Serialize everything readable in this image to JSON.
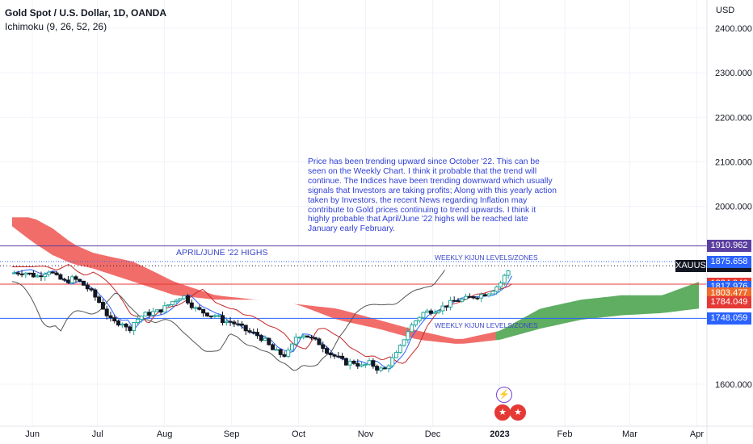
{
  "header": {
    "title": "Gold Spot / U.S. Dollar, 1D, OANDA",
    "indicator": "Ichimoku (9, 26, 52, 26)",
    "currency": "USD"
  },
  "annotations": {
    "april_june_label": "APRIL/JUNE '22 HIGHS",
    "weekly_kijun_label": "WEEKLY KIJUN LEVELS/ZONES",
    "weekly_kijun_label_2": "WEEKLY KIJUN LEVELS/ZONES",
    "note": "Price has been trending upward since October '22. This can be seen on the Weekly Chart. I think it probable that the trend will continue. The Indices have been trending downward which usually signals that Investors are taking profits; Along with this yearly action taken by Investors, the recent News regarding Inflation may contribute to Gold prices continuing to trend upwards. I think it highly probable that April/June '22 highs will be reached late January early February."
  },
  "price_tags": {
    "symbol": "XAUUSD",
    "last": "1866.110",
    "levels": [
      {
        "label": "1910.962",
        "value": 1910.962,
        "color": "#5b3fa0"
      },
      {
        "label": "1875.658",
        "value": 1875.658,
        "color": "#2962ff"
      },
      {
        "label": "1824.946",
        "value": 1824.946,
        "color": "#e53935"
      },
      {
        "label": "1817.976",
        "value": 1817.976,
        "color": "#2962ff"
      },
      {
        "label": "1803.477",
        "value": 1803.477,
        "color": "#ef6c2d"
      },
      {
        "label": "1784.049",
        "value": 1784.049,
        "color": "#e53935"
      },
      {
        "label": "1748.059",
        "value": 1748.059,
        "color": "#2962ff"
      }
    ]
  },
  "colors": {
    "up": "#26a69a",
    "down": "#131722",
    "cloud_bear": "#ef5350",
    "cloud_bull": "#43a047",
    "tenkan": "#2962ff",
    "kijun": "#c62828",
    "chikou": "#555555",
    "april_line": "#5b3fa0",
    "grid": "#f0f3fa"
  },
  "chart_data": {
    "type": "candlestick",
    "title": "Gold Spot / U.S. Dollar, 1D, OANDA",
    "ylim": [
      1550,
      2450
    ],
    "y_ticks": [
      1600,
      2000,
      2100,
      2200,
      2300,
      2400
    ],
    "y_tick_labels": [
      "1600.000",
      "2000.000",
      "2100.000",
      "2200.000",
      "2300.000",
      "2400.000"
    ],
    "x_labels": [
      "Jun",
      "Jul",
      "Aug",
      "Sep",
      "Oct",
      "Nov",
      "Dec",
      "2023",
      "Feb",
      "Mar",
      "Apr"
    ],
    "close_path": [
      [
        0,
        1850
      ],
      [
        0.3,
        1852
      ],
      [
        0.6,
        1842
      ],
      [
        0.9,
        1856
      ],
      [
        1.1,
        1840
      ],
      [
        1.3,
        1830
      ],
      [
        1.5,
        1838
      ],
      [
        1.7,
        1828
      ],
      [
        1.9,
        1812
      ],
      [
        2.1,
        1790
      ],
      [
        2.25,
        1770
      ],
      [
        2.4,
        1745
      ],
      [
        2.55,
        1738
      ],
      [
        2.7,
        1740
      ],
      [
        2.85,
        1720
      ],
      [
        3.0,
        1740
      ],
      [
        3.2,
        1755
      ],
      [
        3.4,
        1760
      ],
      [
        3.6,
        1764
      ],
      [
        3.8,
        1775
      ],
      [
        4.0,
        1790
      ],
      [
        4.2,
        1800
      ],
      [
        4.35,
        1785
      ],
      [
        4.5,
        1770
      ],
      [
        4.7,
        1762
      ],
      [
        4.9,
        1755
      ],
      [
        5.0,
        1755
      ],
      [
        5.2,
        1742
      ],
      [
        5.4,
        1740
      ],
      [
        5.6,
        1730
      ],
      [
        5.8,
        1718
      ],
      [
        6.0,
        1712
      ],
      [
        6.2,
        1700
      ],
      [
        6.4,
        1678
      ],
      [
        6.6,
        1668
      ],
      [
        6.75,
        1665
      ],
      [
        6.9,
        1688
      ],
      [
        7.0,
        1710
      ],
      [
        7.2,
        1712
      ],
      [
        7.4,
        1700
      ],
      [
        7.6,
        1690
      ],
      [
        7.8,
        1670
      ],
      [
        8.0,
        1660
      ],
      [
        8.2,
        1648
      ],
      [
        8.4,
        1650
      ],
      [
        8.6,
        1640
      ],
      [
        8.8,
        1648
      ],
      [
        9.0,
        1635
      ],
      [
        9.15,
        1632
      ],
      [
        9.3,
        1650
      ],
      [
        9.5,
        1672
      ],
      [
        9.7,
        1715
      ],
      [
        9.9,
        1740
      ],
      [
        10.1,
        1760
      ],
      [
        10.3,
        1765
      ],
      [
        10.5,
        1770
      ],
      [
        10.7,
        1778
      ],
      [
        10.9,
        1788
      ],
      [
        11.1,
        1790
      ],
      [
        11.3,
        1796
      ],
      [
        11.5,
        1800
      ],
      [
        11.7,
        1805
      ],
      [
        11.85,
        1815
      ],
      [
        12.0,
        1825
      ],
      [
        12.15,
        1848
      ],
      [
        12.3,
        1866
      ]
    ],
    "x_domain": [
      0,
      17
    ],
    "x_label_positions": [
      0.5,
      2.1,
      3.75,
      5.4,
      7.05,
      8.7,
      10.35,
      12.0,
      13.6,
      15.2,
      16.85
    ]
  }
}
